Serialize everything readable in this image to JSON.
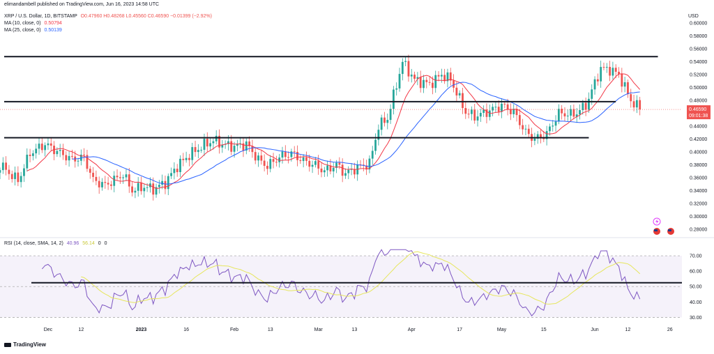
{
  "header": {
    "published": "elimandambell published on TradingView.com, Jun 16, 2023 14:58 UTC",
    "symbol": "XRP / U.S. Dollar, 1D, BITSTAMP",
    "ohlc": "O0.47960 H0.48268 L0.45560 C0.46590 −0.01399 (−2.92%)",
    "ma10_label": "MA (10, close, 0)",
    "ma10_value": "0.50794",
    "ma25_label": "MA (25, close, 0)",
    "ma25_value": "0.50139",
    "rsi_label": "RSI (14, close, SMA, 14, 2)",
    "rsi_value": "40.96",
    "rsi_sma_value": "56.14",
    "rsi_extra_1": "0",
    "rsi_extra_2": "0"
  },
  "branding": {
    "logo_text": "TradingView"
  },
  "colors": {
    "up": "#26a69a",
    "down": "#ef5350",
    "ma10": "#f23645",
    "ma25": "#2962ff",
    "rsi": "#7e57c2",
    "rsi_sma": "#e6e65c",
    "level": "#131722",
    "price_tag": "#ef5350"
  },
  "chart_data": [
    {
      "type": "candlestick",
      "title": "XRP / U.S. Dollar, 1D, BITSTAMP",
      "currency_label": "USD",
      "ylim": [
        0.27,
        0.61
      ],
      "y_ticks": [
        0.28,
        0.3,
        0.32,
        0.34,
        0.36,
        0.38,
        0.4,
        0.42,
        0.44,
        0.46,
        0.48,
        0.5,
        0.52,
        0.54,
        0.56,
        0.58,
        0.6
      ],
      "y_tick_labels": [
        "0.28000",
        "0.30000",
        "0.32000",
        "0.34000",
        "0.36000",
        "0.38000",
        "0.40000",
        "0.42000",
        "0.44000",
        "0.46000",
        "0.48000",
        "0.50000",
        "0.52000",
        "0.54000",
        "0.56000",
        "0.58000",
        "0.60000"
      ],
      "x_ticks": [
        {
          "date": "2022-12-01",
          "label": "Dec"
        },
        {
          "date": "2022-12-12",
          "label": "12"
        },
        {
          "date": "2023-01-01",
          "label": "2023"
        },
        {
          "date": "2023-01-16",
          "label": "16"
        },
        {
          "date": "2023-02-01",
          "label": "Feb"
        },
        {
          "date": "2023-02-13",
          "label": "13"
        },
        {
          "date": "2023-03-01",
          "label": "Mar"
        },
        {
          "date": "2023-03-13",
          "label": "13"
        },
        {
          "date": "2023-04-01",
          "label": "Apr"
        },
        {
          "date": "2023-04-17",
          "label": "17"
        },
        {
          "date": "2023-05-01",
          "label": "May"
        },
        {
          "date": "2023-05-15",
          "label": "15"
        },
        {
          "date": "2023-06-01",
          "label": "Jun"
        },
        {
          "date": "2023-06-12",
          "label": "12"
        },
        {
          "date": "2023-06-26",
          "label": "26"
        }
      ],
      "x_range": [
        "2022-11-15",
        "2023-06-30"
      ],
      "last_price": {
        "value": 0.4659,
        "label": "0.46590",
        "countdown": "09:01:38"
      },
      "price_keypoints": [
        [
          "2022-11-15",
          0.38
        ],
        [
          "2022-11-21",
          0.355
        ],
        [
          "2022-11-25",
          0.398
        ],
        [
          "2022-11-30",
          0.412
        ],
        [
          "2022-12-05",
          0.398
        ],
        [
          "2022-12-09",
          0.388
        ],
        [
          "2022-12-13",
          0.392
        ],
        [
          "2022-12-16",
          0.356
        ],
        [
          "2022-12-20",
          0.348
        ],
        [
          "2022-12-26",
          0.365
        ],
        [
          "2022-12-29",
          0.34
        ],
        [
          "2023-01-02",
          0.346
        ],
        [
          "2023-01-05",
          0.342
        ],
        [
          "2023-01-09",
          0.352
        ],
        [
          "2023-01-13",
          0.378
        ],
        [
          "2023-01-17",
          0.395
        ],
        [
          "2023-01-21",
          0.408
        ],
        [
          "2023-01-25",
          0.418
        ],
        [
          "2023-01-28",
          0.412
        ],
        [
          "2023-02-01",
          0.408
        ],
        [
          "2023-02-05",
          0.412
        ],
        [
          "2023-02-09",
          0.388
        ],
        [
          "2023-02-12",
          0.378
        ],
        [
          "2023-02-16",
          0.392
        ],
        [
          "2023-02-20",
          0.398
        ],
        [
          "2023-02-24",
          0.386
        ],
        [
          "2023-02-28",
          0.379
        ],
        [
          "2023-03-03",
          0.37
        ],
        [
          "2023-03-07",
          0.38
        ],
        [
          "2023-03-10",
          0.366
        ],
        [
          "2023-03-14",
          0.376
        ],
        [
          "2023-03-18",
          0.382
        ],
        [
          "2023-03-21",
          0.44
        ],
        [
          "2023-03-24",
          0.452
        ],
        [
          "2023-03-29",
          0.54
        ],
        [
          "2023-04-02",
          0.512
        ],
        [
          "2023-04-07",
          0.505
        ],
        [
          "2023-04-11",
          0.52
        ],
        [
          "2023-04-14",
          0.512
        ],
        [
          "2023-04-19",
          0.462
        ],
        [
          "2023-04-22",
          0.455
        ],
        [
          "2023-04-26",
          0.462
        ],
        [
          "2023-05-01",
          0.472
        ],
        [
          "2023-05-05",
          0.462
        ],
        [
          "2023-05-09",
          0.43
        ],
        [
          "2023-05-12",
          0.42
        ],
        [
          "2023-05-16",
          0.428
        ],
        [
          "2023-05-20",
          0.46
        ],
        [
          "2023-05-25",
          0.458
        ],
        [
          "2023-05-29",
          0.472
        ],
        [
          "2023-06-03",
          0.53
        ],
        [
          "2023-06-06",
          0.528
        ],
        [
          "2023-06-09",
          0.52
        ],
        [
          "2023-06-13",
          0.48
        ],
        [
          "2023-06-16",
          0.4659
        ]
      ],
      "support_resistance_lines": [
        {
          "price": 0.548,
          "from": "2022-11-15",
          "to": "2023-06-22"
        },
        {
          "price": 0.478,
          "from": "2022-11-15",
          "to": "2023-06-08"
        },
        {
          "price": 0.422,
          "from": "2022-11-15",
          "to": "2023-05-30"
        }
      ]
    },
    {
      "type": "line",
      "title": "RSI (14, close, SMA, 14, 2)",
      "ylim": [
        27,
        75
      ],
      "y_ticks": [
        30,
        40,
        50,
        60,
        70
      ],
      "y_tick_labels": [
        "30.00",
        "40.00",
        "50.00",
        "60.00",
        "70.00"
      ],
      "bands": {
        "upper": 70,
        "middle": 50,
        "lower": 30
      },
      "horizontal_line": 52.5,
      "series": [
        {
          "name": "RSI"
        },
        {
          "name": "RSI SMA"
        }
      ]
    }
  ]
}
